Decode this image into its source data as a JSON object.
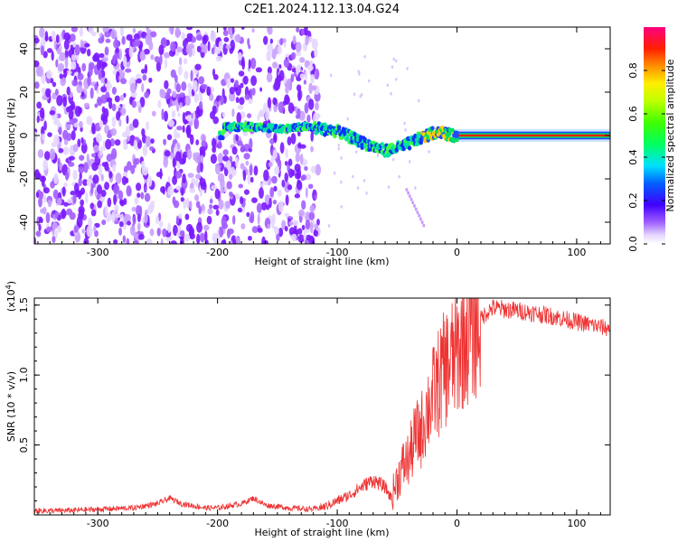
{
  "title": "C2E1.2024.112.13.04.G24",
  "chart_data": [
    {
      "type": "heatmap",
      "title": "C2E1.2024.112.13.04.G24",
      "xlabel": "Height of straight line (km)",
      "ylabel": "Frequency (Hz)",
      "xlim": [
        -353,
        128
      ],
      "ylim": [
        -50,
        50
      ],
      "x_ticks": [
        -300,
        -200,
        -100,
        0,
        100
      ],
      "x_tick_labels": [
        "-300",
        "-200",
        "-100",
        "0",
        "100"
      ],
      "y_ticks": [
        -40,
        -20,
        0,
        20,
        40
      ],
      "y_tick_labels": [
        "-40",
        "-20",
        "0",
        "20",
        "40"
      ],
      "colorbar": {
        "label": "Normalized spectral amplitude",
        "range": [
          0,
          1
        ],
        "ticks": [
          0.0,
          0.2,
          0.4,
          0.6,
          0.8
        ],
        "tick_labels": [
          "0.0",
          "0.2",
          "0.4",
          "0.6",
          "0.8"
        ]
      },
      "ridge": {
        "description_points_x": [
          -195,
          -170,
          -150,
          -125,
          -100,
          -80,
          -60,
          -45,
          -30,
          -15,
          -5,
          0,
          128
        ],
        "description_points_y": [
          4,
          4,
          3,
          4,
          2,
          -3,
          -7,
          -5,
          -1,
          2,
          0,
          0,
          0
        ]
      },
      "noise_region_x": [
        -353,
        -115
      ]
    },
    {
      "type": "line",
      "xlabel": "Height of straight line (km)",
      "ylabel": "SNR (10 * v/v)",
      "y_scale_label": "(x10",
      "y_scale_exp": "4",
      "y_scale_close": ")",
      "xlim": [
        -353,
        128
      ],
      "ylim": [
        0,
        1.55
      ],
      "x_ticks": [
        -300,
        -200,
        -100,
        0,
        100
      ],
      "x_tick_labels": [
        "-300",
        "-200",
        "-100",
        "0",
        "100"
      ],
      "y_ticks": [
        0.5,
        1.0,
        1.5
      ],
      "y_tick_labels": [
        "0.5",
        "1.0",
        "1.5"
      ],
      "series": [
        {
          "color": "#ee3333",
          "x": [
            -353,
            -330,
            -300,
            -270,
            -250,
            -240,
            -230,
            -210,
            -200,
            -180,
            -170,
            -160,
            -140,
            -120,
            -110,
            -100,
            -90,
            -80,
            -70,
            -60,
            -55,
            -50,
            -45,
            -40,
            -35,
            -30,
            -25,
            -20,
            -15,
            -10,
            -5,
            0,
            5,
            10,
            15,
            20,
            25,
            30,
            40,
            60,
            80,
            100,
            128
          ],
          "y": [
            0.03,
            0.03,
            0.04,
            0.05,
            0.08,
            0.12,
            0.08,
            0.05,
            0.05,
            0.08,
            0.12,
            0.07,
            0.05,
            0.04,
            0.06,
            0.1,
            0.14,
            0.2,
            0.25,
            0.2,
            0.12,
            0.25,
            0.35,
            0.4,
            0.55,
            0.6,
            0.75,
            0.85,
            0.95,
            1.05,
            1.1,
            1.15,
            1.25,
            1.3,
            1.35,
            1.4,
            1.45,
            1.48,
            1.47,
            1.45,
            1.42,
            1.38,
            1.33
          ]
        }
      ]
    }
  ]
}
